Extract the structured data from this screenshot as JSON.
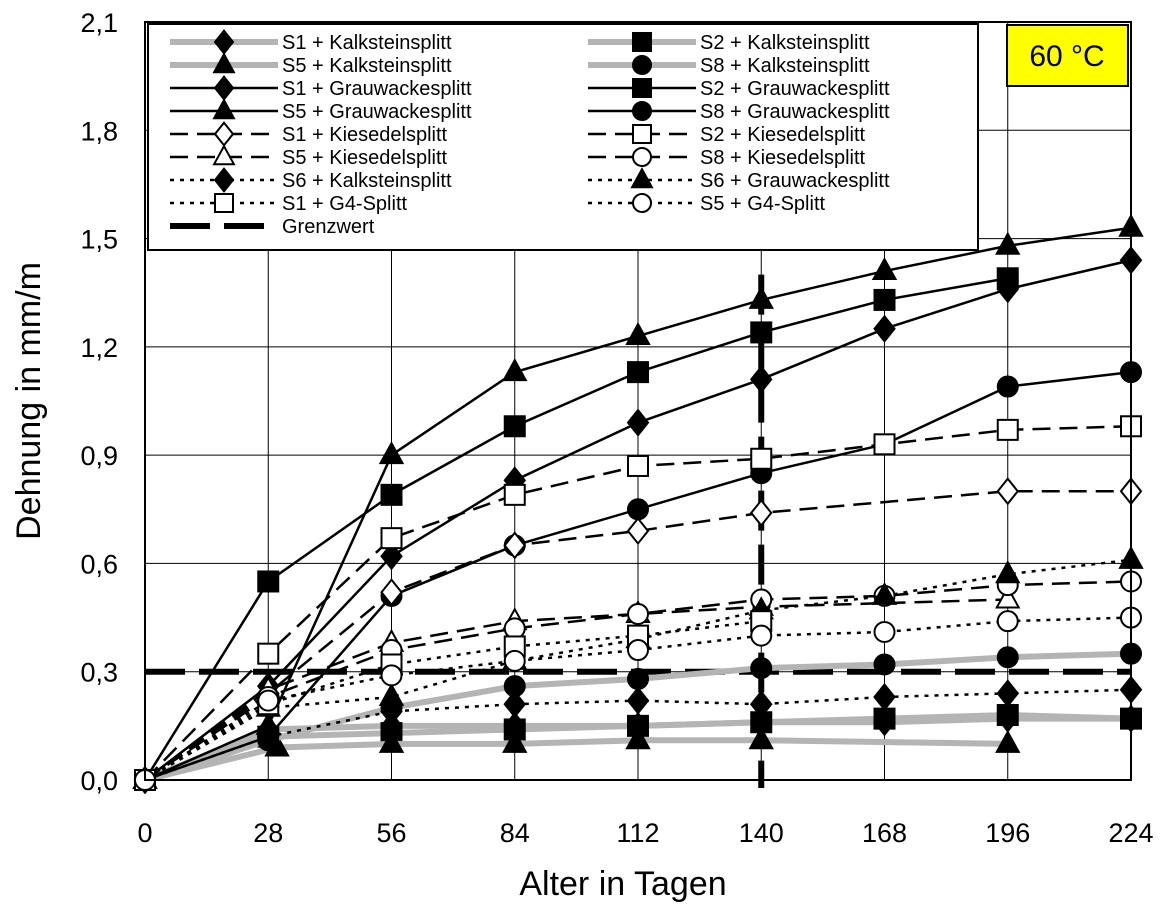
{
  "chart_data": {
    "type": "line",
    "title": "",
    "xlabel": "Alter in Tagen",
    "ylabel": "Dehnung in mm/m",
    "xlim": [
      0,
      224
    ],
    "ylim": [
      0,
      2.1
    ],
    "xticks": [
      "0",
      "28",
      "56",
      "84",
      "112",
      "140",
      "168",
      "196",
      "224"
    ],
    "yticks": [
      "0,0",
      "0,3",
      "0,6",
      "0,9",
      "1,2",
      "1,5",
      "1,8",
      "2,1"
    ],
    "grid": true,
    "legend": "top, inside plot, two columns",
    "annotation": "60 °C",
    "annotation_color": "#ffff00",
    "series": [
      {
        "name": "S1 + Kalksteinsplitt",
        "style": "gray-thick",
        "marker": "diamond-filled",
        "x": [
          0,
          28,
          56,
          84,
          112,
          140,
          168,
          196,
          224
        ],
        "y": [
          0.0,
          0.14,
          0.15,
          0.15,
          0.15,
          0.16,
          0.16,
          0.17,
          0.17
        ]
      },
      {
        "name": "S2 + Kalksteinsplitt",
        "style": "gray-thick",
        "marker": "square-filled",
        "x": [
          0,
          28,
          56,
          84,
          112,
          140,
          168,
          196,
          224
        ],
        "y": [
          0.0,
          0.12,
          0.13,
          0.14,
          0.15,
          0.16,
          0.17,
          0.18,
          0.17
        ]
      },
      {
        "name": "S5 + Kalksteinsplitt",
        "style": "gray-thick",
        "marker": "triangle-filled",
        "x": [
          0,
          30,
          56,
          84,
          112,
          140,
          196
        ],
        "y": [
          0.0,
          0.09,
          0.1,
          0.1,
          0.11,
          0.11,
          0.1
        ]
      },
      {
        "name": "S8 + Kalksteinsplitt",
        "style": "gray-thick",
        "marker": "circle-filled",
        "x": [
          0,
          28,
          56,
          84,
          112,
          140,
          168,
          196,
          224
        ],
        "y": [
          0.0,
          0.11,
          0.2,
          0.26,
          0.28,
          0.31,
          0.32,
          0.34,
          0.35
        ]
      },
      {
        "name": "S1 + Grauwackesplitt",
        "style": "solid",
        "marker": "diamond-filled",
        "x": [
          0,
          28,
          56,
          84,
          112,
          140,
          168,
          196,
          224
        ],
        "y": [
          0.0,
          0.26,
          0.62,
          0.83,
          0.99,
          1.11,
          1.25,
          1.36,
          1.44
        ]
      },
      {
        "name": "S2 + Grauwackesplitt",
        "style": "solid",
        "marker": "square-filled",
        "x": [
          0,
          28,
          56,
          84,
          112,
          140,
          168,
          196
        ],
        "y": [
          0.0,
          0.55,
          0.79,
          0.98,
          1.13,
          1.24,
          1.33,
          1.39
        ]
      },
      {
        "name": "S5 + Grauwackesplitt",
        "style": "solid",
        "marker": "triangle-filled",
        "x": [
          0,
          28,
          56,
          84,
          112,
          140,
          168,
          196,
          224
        ],
        "y": [
          0.0,
          0.15,
          0.9,
          1.13,
          1.23,
          1.33,
          1.41,
          1.48,
          1.53
        ]
      },
      {
        "name": "S8 + Grauwackesplitt",
        "style": "solid",
        "marker": "circle-filled",
        "x": [
          0,
          28,
          56,
          84,
          112,
          140,
          168,
          196,
          224
        ],
        "y": [
          0.0,
          0.12,
          0.51,
          0.65,
          0.75,
          0.85,
          0.93,
          1.09,
          1.13
        ]
      },
      {
        "name": "S1 + Kiesedelsplitt",
        "style": "dashed",
        "marker": "diamond-open",
        "x": [
          0,
          28,
          56,
          84,
          112,
          140,
          196,
          224
        ],
        "y": [
          0.0,
          0.24,
          0.52,
          0.65,
          0.69,
          0.74,
          0.8,
          0.8
        ]
      },
      {
        "name": "S2 + Kiesedelsplitt",
        "style": "dashed",
        "marker": "square-open",
        "x": [
          0,
          28,
          56,
          84,
          112,
          140,
          168,
          196,
          224
        ],
        "y": [
          0.0,
          0.35,
          0.67,
          0.79,
          0.87,
          0.89,
          0.93,
          0.97,
          0.98
        ]
      },
      {
        "name": "S5 + Kiesedelsplitt",
        "style": "dashed",
        "marker": "triangle-open",
        "x": [
          0,
          28,
          56,
          84,
          112,
          140,
          196
        ],
        "y": [
          0.0,
          0.25,
          0.38,
          0.44,
          0.46,
          0.48,
          0.5
        ]
      },
      {
        "name": "S8 + Kiesedelsplitt",
        "style": "dashed",
        "marker": "circle-open",
        "x": [
          0,
          28,
          56,
          84,
          112,
          140,
          168,
          196,
          224
        ],
        "y": [
          0.0,
          0.23,
          0.36,
          0.42,
          0.46,
          0.5,
          0.51,
          0.54,
          0.55
        ]
      },
      {
        "name": "S6 + Kalksteinsplitt",
        "style": "dotted",
        "marker": "diamond-filled",
        "x": [
          0,
          28,
          56,
          84,
          112,
          140,
          168,
          196,
          224
        ],
        "y": [
          0.0,
          0.12,
          0.19,
          0.21,
          0.22,
          0.21,
          0.23,
          0.24,
          0.25
        ]
      },
      {
        "name": "S6 + Grauwackesplitt",
        "style": "dotted",
        "marker": "triangle-filled",
        "x": [
          0,
          28,
          56,
          84,
          112,
          140,
          168,
          196,
          224
        ],
        "y": [
          0.0,
          0.2,
          0.23,
          0.33,
          0.39,
          0.47,
          0.51,
          0.57,
          0.61
        ]
      },
      {
        "name": "S1 + G4-Splitt",
        "style": "dotted",
        "marker": "square-open",
        "x": [
          0,
          28,
          56,
          84,
          112,
          140
        ],
        "y": [
          0.0,
          0.21,
          0.32,
          0.37,
          0.4,
          0.44
        ]
      },
      {
        "name": "S5 + G4-Splitt",
        "style": "dotted",
        "marker": "circle-open",
        "x": [
          0,
          28,
          56,
          84,
          112,
          140,
          168,
          196,
          224
        ],
        "y": [
          0.0,
          0.22,
          0.29,
          0.33,
          0.36,
          0.4,
          0.41,
          0.44,
          0.45
        ]
      },
      {
        "name": "Grenzwert",
        "style": "thick-dashed",
        "marker": "none",
        "x": [
          0,
          224
        ],
        "y": [
          0.3,
          0.3
        ]
      }
    ],
    "vertical_marker": {
      "x": 140,
      "style": "thick-dashed"
    }
  }
}
